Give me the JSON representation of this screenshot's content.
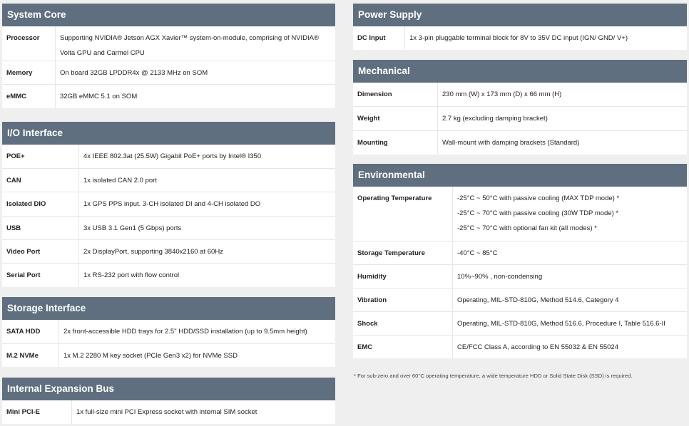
{
  "sections": [
    {
      "title": "System Core",
      "rows": [
        {
          "label": "Processor",
          "values": [
            "Supporting NVIDIA® Jetson AGX Xavier™ system-on-module, comprising of NVIDIA® Volta GPU and Carmel CPU"
          ]
        },
        {
          "label": "Memory",
          "values": [
            "On board 32GB LPDDR4x @ 2133 MHz on SOM"
          ]
        },
        {
          "label": "eMMC",
          "values": [
            "32GB eMMC 5.1 on SOM"
          ]
        }
      ]
    },
    {
      "title": "I/O Interface",
      "rows": [
        {
          "label": "POE+",
          "values": [
            "4x IEEE 802.3at (25.5W) Gigabit PoE+ ports by Intel® I350"
          ]
        },
        {
          "label": "CAN",
          "values": [
            "1x isolated CAN 2.0 port"
          ]
        },
        {
          "label": "Isolated DIO",
          "values": [
            "1x GPS PPS input. 3-CH isolated DI and 4-CH isolated DO"
          ]
        },
        {
          "label": "USB",
          "values": [
            "3x USB 3.1 Gen1 (5 Gbps) ports"
          ]
        },
        {
          "label": "Video Port",
          "values": [
            "2x DisplayPort, supporting 3840x2160 at 60Hz"
          ]
        },
        {
          "label": "Serial Port",
          "values": [
            "1x RS-232 port with flow control"
          ]
        }
      ]
    },
    {
      "title": "Storage Interface",
      "rows": [
        {
          "label": "SATA HDD",
          "values": [
            "2x front-accessible HDD trays for 2.5\" HDD/SSD installation (up to 9.5mm height)"
          ]
        },
        {
          "label": "M.2 NVMe",
          "values": [
            "1x M.2 2280 M key socket (PCIe Gen3 x2) for NVMe SSD"
          ]
        }
      ]
    },
    {
      "title": "Internal Expansion Bus",
      "rows": [
        {
          "label": "Mini PCI-E",
          "values": [
            "1x full-size mini PCI Express socket with internal SIM socket"
          ]
        }
      ]
    },
    {
      "title": "Power Supply",
      "rows": [
        {
          "label": "DC Input",
          "values": [
            "1x 3-pin pluggable terminal block for 8V to 35V DC input (IGN/ GND/ V+)"
          ]
        }
      ]
    },
    {
      "title": "Mechanical",
      "rows": [
        {
          "label": "Dimension",
          "values": [
            "230 mm (W) x 173 mm (D) x 66 mm (H)"
          ]
        },
        {
          "label": "Weight",
          "values": [
            "2.7 kg (excluding damping bracket)"
          ]
        },
        {
          "label": "Mounting",
          "values": [
            "Wall-mount with damping brackets (Standard)"
          ]
        }
      ]
    },
    {
      "title": "Environmental",
      "rows": [
        {
          "label": "Operating Temperature",
          "values": [
            "-25°C ~ 50°C with passive cooling (MAX TDP mode) *",
            "-25°C ~ 70°C with passive cooling (30W TDP mode) *",
            "-25°C ~ 70°C with optional fan kit (all modes) *"
          ]
        },
        {
          "label": "Storage Temperature",
          "values": [
            "-40°C ~ 85°C"
          ]
        },
        {
          "label": "Humidity",
          "values": [
            "10%~90% , non-condensing"
          ]
        },
        {
          "label": "Vibration",
          "values": [
            "Operating, MIL-STD-810G, Method 514.6, Category 4"
          ]
        },
        {
          "label": "Shock",
          "values": [
            "Operating, MIL-STD-810G, Method 516.6, Procedure I, Table 516.6-II"
          ]
        },
        {
          "label": "EMC",
          "values": [
            "CE/FCC Class A, according to EN 55032 & EN 55024"
          ]
        }
      ]
    }
  ],
  "footnote": "* For sub-zero and over 60°C operating temperature, a wide temperature HDD or Solid State Disk (SSD) is required.",
  "colors": {
    "header": "#5f6f80",
    "background": "#efefef"
  }
}
